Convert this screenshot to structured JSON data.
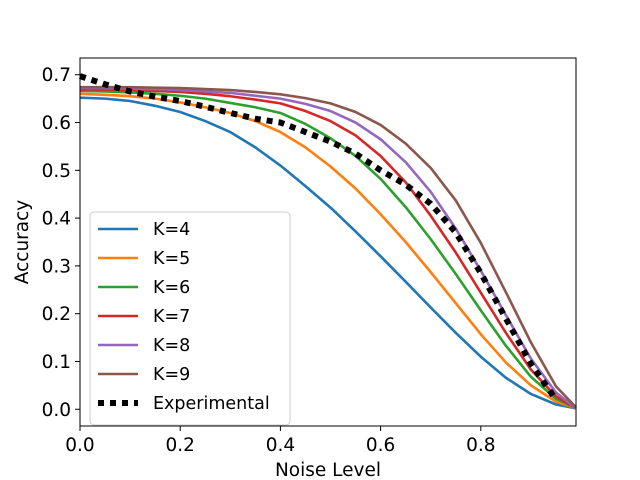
{
  "chart_data": {
    "type": "line",
    "xlabel": "Noise Level",
    "ylabel": "Accuracy",
    "xlim": [
      0.0,
      0.99
    ],
    "ylim": [
      -0.035,
      0.735
    ],
    "xticks": [
      "0.0",
      "0.2",
      "0.4",
      "0.6",
      "0.8"
    ],
    "yticks": [
      "0.0",
      "0.1",
      "0.2",
      "0.3",
      "0.4",
      "0.5",
      "0.6",
      "0.7"
    ],
    "grid": false,
    "legend_position": "lower-left",
    "x": [
      0.0,
      0.05,
      0.1,
      0.15,
      0.2,
      0.25,
      0.3,
      0.35,
      0.4,
      0.45,
      0.5,
      0.55,
      0.6,
      0.65,
      0.7,
      0.75,
      0.8,
      0.85,
      0.9,
      0.95,
      0.99
    ],
    "series": [
      {
        "name": "K=4",
        "color": "#1f77b4",
        "style": "solid",
        "values": [
          0.652,
          0.65,
          0.645,
          0.635,
          0.622,
          0.603,
          0.58,
          0.548,
          0.51,
          0.467,
          0.422,
          0.372,
          0.32,
          0.267,
          0.213,
          0.16,
          0.11,
          0.066,
          0.032,
          0.01,
          0.002
        ]
      },
      {
        "name": "K=5",
        "color": "#ff7f0e",
        "style": "solid",
        "values": [
          0.66,
          0.658,
          0.655,
          0.65,
          0.642,
          0.632,
          0.62,
          0.603,
          0.58,
          0.548,
          0.508,
          0.462,
          0.408,
          0.35,
          0.287,
          0.222,
          0.157,
          0.098,
          0.05,
          0.016,
          0.002
        ]
      },
      {
        "name": "K=6",
        "color": "#2ca02c",
        "style": "solid",
        "values": [
          0.666,
          0.665,
          0.663,
          0.66,
          0.656,
          0.65,
          0.641,
          0.632,
          0.62,
          0.597,
          0.567,
          0.53,
          0.482,
          0.423,
          0.356,
          0.283,
          0.207,
          0.133,
          0.068,
          0.022,
          0.002
        ]
      },
      {
        "name": "K=7",
        "color": "#d62728",
        "style": "solid",
        "values": [
          0.669,
          0.669,
          0.668,
          0.666,
          0.664,
          0.66,
          0.655,
          0.648,
          0.64,
          0.624,
          0.603,
          0.573,
          0.53,
          0.475,
          0.405,
          0.328,
          0.244,
          0.16,
          0.083,
          0.027,
          0.002
        ]
      },
      {
        "name": "K=8",
        "color": "#9467bd",
        "style": "solid",
        "values": [
          0.672,
          0.672,
          0.671,
          0.67,
          0.668,
          0.665,
          0.662,
          0.656,
          0.65,
          0.639,
          0.624,
          0.6,
          0.565,
          0.517,
          0.455,
          0.378,
          0.29,
          0.197,
          0.106,
          0.035,
          0.002
        ]
      },
      {
        "name": "K=9",
        "color": "#8c564b",
        "style": "solid",
        "values": [
          0.674,
          0.674,
          0.674,
          0.673,
          0.672,
          0.67,
          0.668,
          0.664,
          0.659,
          0.651,
          0.64,
          0.622,
          0.595,
          0.556,
          0.505,
          0.437,
          0.348,
          0.245,
          0.14,
          0.048,
          0.004
        ]
      },
      {
        "name": "Experimental",
        "color": "#000000",
        "style": "dotted",
        "values": [
          0.697,
          0.68,
          0.665,
          0.654,
          0.645,
          0.633,
          0.62,
          0.608,
          0.6,
          0.58,
          0.56,
          0.535,
          0.5,
          0.47,
          0.43,
          0.37,
          0.285,
          0.19,
          0.095,
          0.02,
          null
        ]
      }
    ]
  }
}
